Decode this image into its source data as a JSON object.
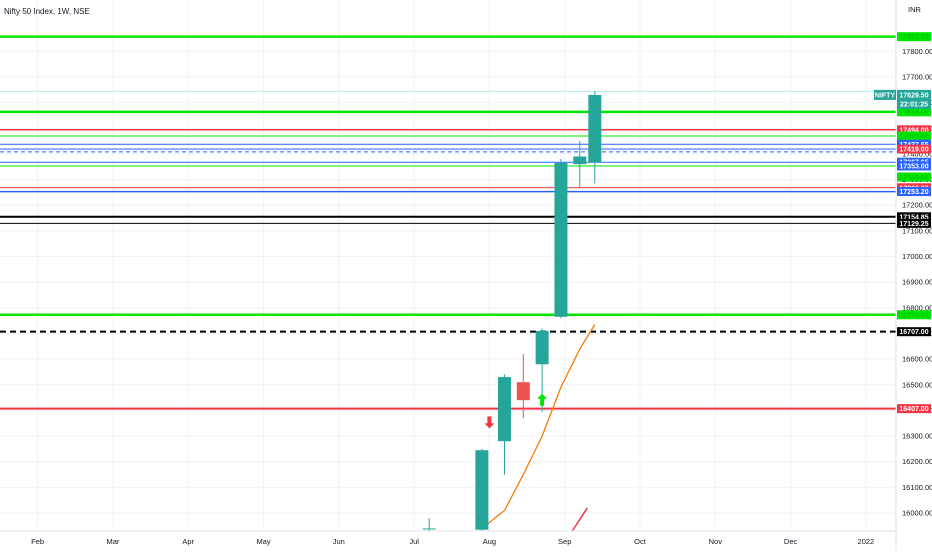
{
  "chart_data": {
    "type": "candlestick",
    "title": "Nifty 50 Index, 1W, NSE",
    "currency": "INR",
    "symbol_badge": "NIFTY",
    "price_label": "17629.50",
    "countdown_label": "22:01:25",
    "ylim": [
      15930,
      18000
    ],
    "xlim_months": [
      0.5,
      12.4
    ],
    "x_ticks": [
      {
        "label": "Feb",
        "m": 1.0
      },
      {
        "label": "Mar",
        "m": 2.0
      },
      {
        "label": "Apr",
        "m": 3.0
      },
      {
        "label": "May",
        "m": 4.0
      },
      {
        "label": "Jun",
        "m": 5.0
      },
      {
        "label": "Jul",
        "m": 6.0
      },
      {
        "label": "Aug",
        "m": 7.0
      },
      {
        "label": "Sep",
        "m": 8.0
      },
      {
        "label": "Oct",
        "m": 9.0
      },
      {
        "label": "Nov",
        "m": 10.0
      },
      {
        "label": "Dec",
        "m": 11.0
      },
      {
        "label": "2022",
        "m": 12.0
      }
    ],
    "y_ticks": [
      16000,
      16100,
      16200,
      16300,
      16400,
      16500,
      16600,
      16700,
      16800,
      16900,
      17000,
      17100,
      17200,
      17300,
      17400,
      17500,
      17600,
      17700,
      17800
    ],
    "candles": [
      {
        "m": 6.2,
        "open": 15940,
        "high": 15980,
        "low": 15930,
        "close": 15940
      },
      {
        "m": 6.9,
        "open": 15935,
        "high": 16250,
        "low": 15930,
        "close": 16245
      },
      {
        "m": 7.2,
        "open": 16280,
        "high": 16540,
        "low": 16150,
        "close": 16530
      },
      {
        "m": 7.45,
        "open": 16510,
        "high": 16620,
        "low": 16370,
        "close": 16440
      },
      {
        "m": 7.7,
        "open": 16580,
        "high": 16720,
        "low": 16395,
        "close": 16710
      },
      {
        "m": 7.95,
        "open": 16765,
        "high": 17380,
        "low": 16760,
        "close": 17365
      },
      {
        "m": 8.2,
        "open": 17360,
        "high": 17450,
        "low": 17270,
        "close": 17390
      },
      {
        "m": 8.4,
        "open": 17367,
        "high": 17645,
        "low": 17285,
        "close": 17630
      }
    ],
    "ema": [
      {
        "m": 6.9,
        "v": 15940
      },
      {
        "m": 7.2,
        "v": 16010
      },
      {
        "m": 7.45,
        "v": 16150
      },
      {
        "m": 7.7,
        "v": 16300
      },
      {
        "m": 7.95,
        "v": 16490
      },
      {
        "m": 8.2,
        "v": 16640
      },
      {
        "m": 8.4,
        "v": 16735
      }
    ],
    "arrows": [
      {
        "m": 7.0,
        "v": 16330,
        "direction": "down",
        "color": "#f23645"
      },
      {
        "m": 7.7,
        "v": 16465,
        "direction": "up",
        "color": "#00e600"
      }
    ],
    "red_trend_line": [
      {
        "m": 8.1,
        "v": 15930
      },
      {
        "m": 8.3,
        "v": 16020
      }
    ],
    "level_lines": [
      {
        "price": 17857,
        "color": "#00e600",
        "width": 2.5,
        "dash": ""
      },
      {
        "price": 17644,
        "color": "#b2ebe8",
        "width": 1,
        "dash": ""
      },
      {
        "price": 17564,
        "color": "#00e600",
        "width": 2.5,
        "dash": ""
      },
      {
        "price": 17494,
        "color": "#f23645",
        "width": 1.5,
        "dash": ""
      },
      {
        "price": 17470,
        "color": "#00e600",
        "width": 1,
        "dash": ""
      },
      {
        "price": 17437.65,
        "color": "#2962ff",
        "width": 1,
        "dash": ""
      },
      {
        "price": 17419,
        "color": "#2962ff",
        "width": 1,
        "dash": ""
      },
      {
        "price": 17408,
        "color": "#2962ff",
        "width": 1,
        "dash": "4,3"
      },
      {
        "price": 17367.65,
        "color": "#2962ff",
        "width": 1,
        "dash": ""
      },
      {
        "price": 17353,
        "color": "#00e600",
        "width": 1,
        "dash": ""
      },
      {
        "price": 17268,
        "color": "#f23645",
        "width": 1,
        "dash": ""
      },
      {
        "price": 17253.2,
        "color": "#2962ff",
        "width": 1.5,
        "dash": ""
      },
      {
        "price": 17154.85,
        "color": "#000000",
        "width": 2,
        "dash": ""
      },
      {
        "price": 17129.25,
        "color": "#000000",
        "width": 1,
        "dash": ""
      },
      {
        "price": 16773,
        "color": "#00e600",
        "width": 2.5,
        "dash": ""
      },
      {
        "price": 16707,
        "color": "#000000",
        "width": 2,
        "dash": "6,4"
      },
      {
        "price": 16407,
        "color": "#f23645",
        "width": 2,
        "dash": ""
      }
    ],
    "price_badges": [
      {
        "text": "17857.00",
        "price": 17857,
        "bg": "#00e600",
        "fg": "#00c600"
      },
      {
        "text": "17564.00",
        "price": 17564,
        "bg": "#00e600",
        "fg": "#00c600"
      },
      {
        "text": "17494.00",
        "price": 17494,
        "bg": "#f23645",
        "fg": "#ffffff"
      },
      {
        "text": "17470.00",
        "price": 17470,
        "bg": "#00e600",
        "fg": "#00c600"
      },
      {
        "text": "17437.65",
        "price": 17437.65,
        "bg": "#2962ff",
        "fg": "#ffffff"
      },
      {
        "text": "17419.00",
        "price": 17419,
        "bg": "#f23645",
        "fg": "#ffffff"
      },
      {
        "text": "17367.65",
        "price": 17367.65,
        "bg": "#2962ff",
        "fg": "#ffffff"
      },
      {
        "text": "17353.00",
        "price": 17353,
        "bg": "#2962ff",
        "fg": "#ffffff"
      },
      {
        "text": "17310.00",
        "price": 17310,
        "bg": "#00e600",
        "fg": "#00c600"
      },
      {
        "text": "17268.00",
        "price": 17268,
        "bg": "#f23645",
        "fg": "#ffffff"
      },
      {
        "text": "17253.20",
        "price": 17253.2,
        "bg": "#2962ff",
        "fg": "#ffffff"
      },
      {
        "text": "17154.85",
        "price": 17154.85,
        "bg": "#000000",
        "fg": "#ffffff"
      },
      {
        "text": "17129.25",
        "price": 17129.25,
        "bg": "#000000",
        "fg": "#ffffff"
      },
      {
        "text": "16773.00",
        "price": 16773,
        "bg": "#00e600",
        "fg": "#00c600"
      },
      {
        "text": "16707.00",
        "price": 16707,
        "bg": "#000000",
        "fg": "#ffffff"
      },
      {
        "text": "16407.00",
        "price": 16407,
        "bg": "#f23645",
        "fg": "#ffffff"
      }
    ],
    "colors": {
      "up": "#26a69a",
      "down": "#ef5350",
      "ema": "#f57c00",
      "grid": "#f0f3fa",
      "axis_text": "#131722",
      "current_price": "#26a69a"
    },
    "grid": true
  }
}
